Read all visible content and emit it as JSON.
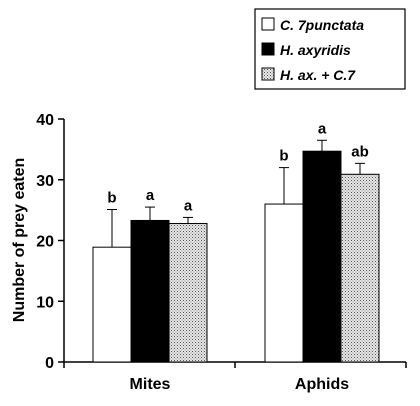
{
  "chart_data": {
    "type": "bar",
    "title": "",
    "xlabel": "",
    "ylabel": "Number of prey eaten",
    "ylim": [
      0,
      40
    ],
    "yticks": [
      0,
      10,
      20,
      30,
      40
    ],
    "categories": [
      "Mites",
      "Aphids"
    ],
    "grid": false,
    "legend_position": "top-right",
    "series": [
      {
        "name": "C. 7punctata",
        "fill": "white",
        "color": "#ffffff",
        "values": [
          18.9,
          26.0
        ],
        "errors": [
          6.2,
          6.0
        ],
        "letters": [
          "b",
          "b"
        ]
      },
      {
        "name": "H. axyridis",
        "fill": "solid",
        "color": "#000000",
        "values": [
          23.3,
          34.7
        ],
        "errors": [
          2.2,
          1.8
        ],
        "letters": [
          "a",
          "a"
        ]
      },
      {
        "name": "H. ax. + C.7",
        "fill": "stipple",
        "color": "#c8c8c8",
        "values": [
          22.8,
          30.9
        ],
        "errors": [
          1.0,
          1.8
        ],
        "letters": [
          "a",
          "ab"
        ]
      }
    ]
  }
}
